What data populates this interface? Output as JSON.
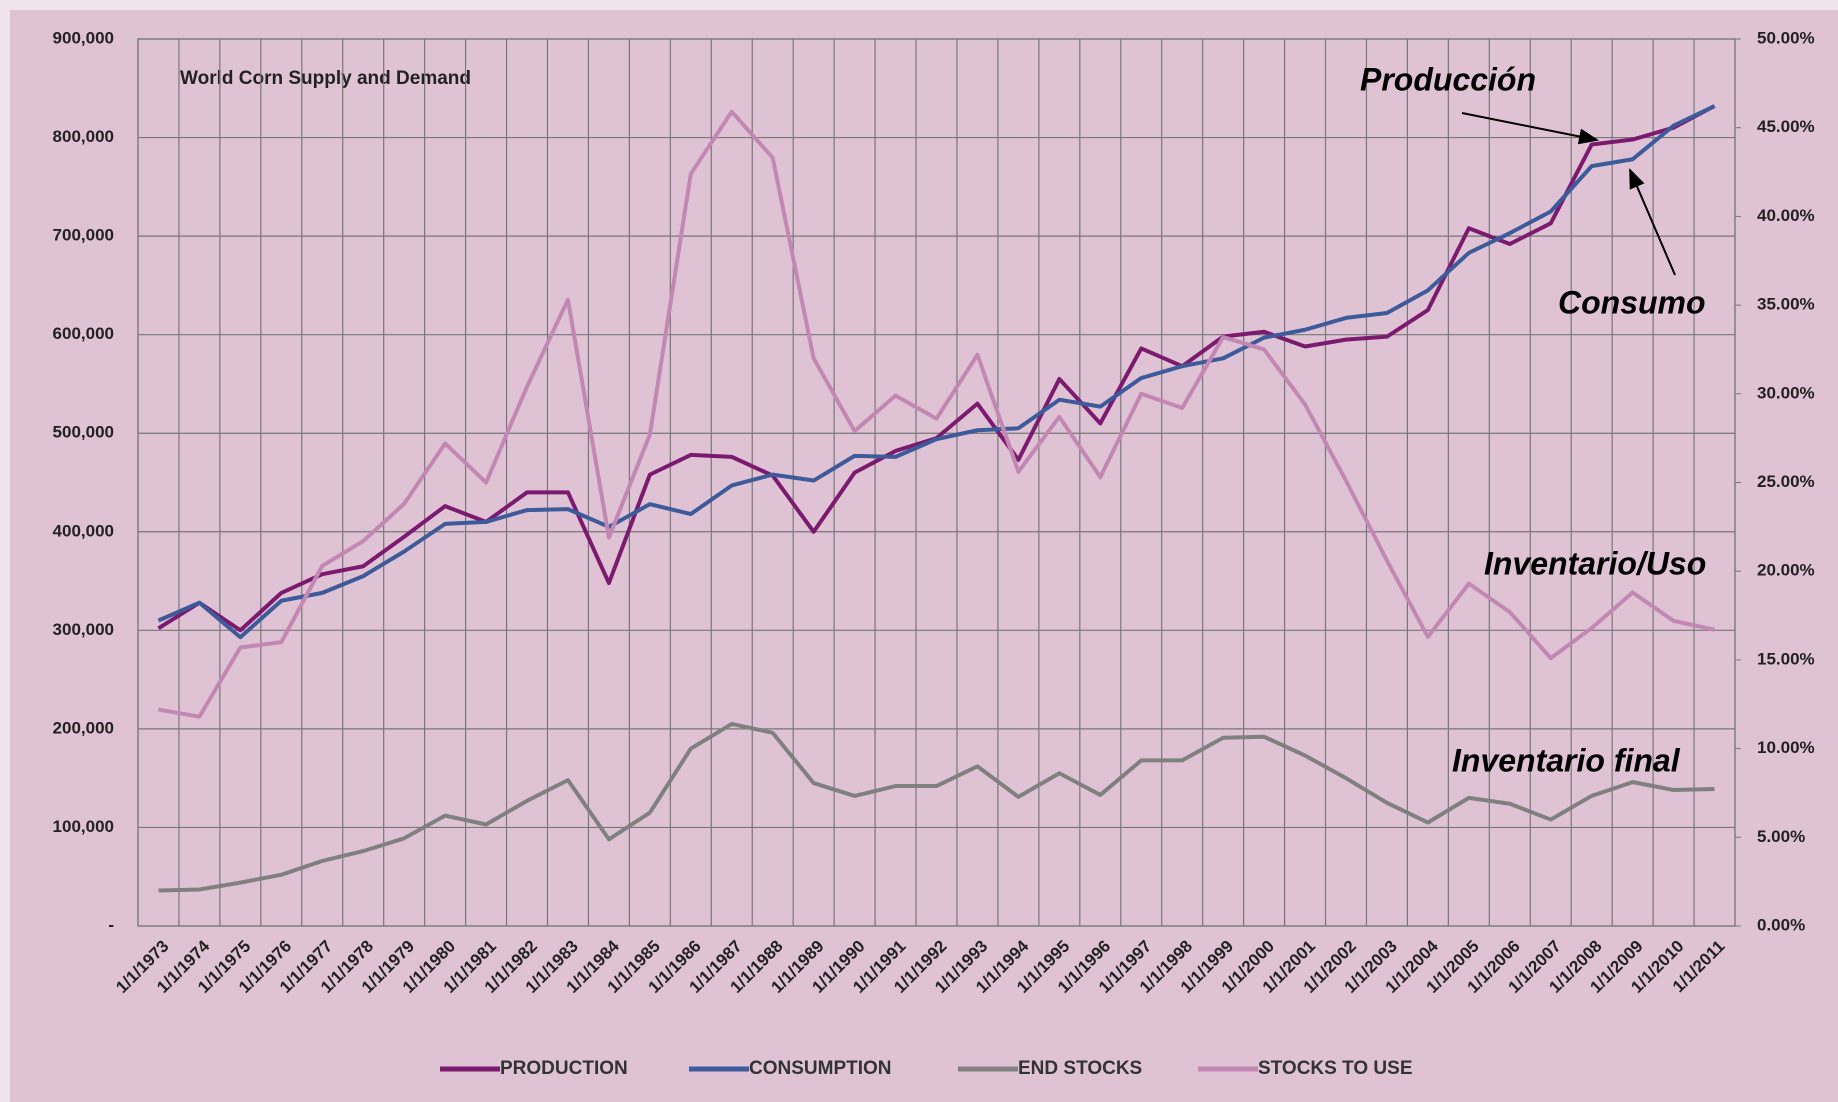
{
  "chart_data": {
    "type": "line",
    "title": "World Corn Supply  and Demand",
    "categories": [
      "1/1/1973",
      "1/1/1974",
      "1/1/1975",
      "1/1/1976",
      "1/1/1977",
      "1/1/1978",
      "1/1/1979",
      "1/1/1980",
      "1/1/1981",
      "1/1/1982",
      "1/1/1983",
      "1/1/1984",
      "1/1/1985",
      "1/1/1986",
      "1/1/1987",
      "1/1/1988",
      "1/1/1989",
      "1/1/1990",
      "1/1/1991",
      "1/1/1992",
      "1/1/1993",
      "1/1/1994",
      "1/1/1995",
      "1/1/1996",
      "1/1/1997",
      "1/1/1998",
      "1/1/1999",
      "1/1/2000",
      "1/1/2001",
      "1/1/2002",
      "1/1/2003",
      "1/1/2004",
      "1/1/2005",
      "1/1/2006",
      "1/1/2007",
      "1/1/2008",
      "1/1/2009",
      "1/1/2010",
      "1/1/2011"
    ],
    "series": [
      {
        "name": "PRODUCTION",
        "color": "#7b1a6e",
        "values": [
          302000,
          328000,
          300000,
          338000,
          357000,
          365000,
          395000,
          426000,
          410000,
          440000,
          440000,
          348000,
          458000,
          478000,
          476000,
          457000,
          400000,
          460000,
          482000,
          495000,
          530000,
          473000,
          555000,
          510000,
          586000,
          568000,
          598000,
          603000,
          588000,
          595000,
          598000,
          625000,
          708000,
          692000,
          713000,
          793000,
          798000,
          810000,
          832000
        ]
      },
      {
        "name": "CONSUMPTION",
        "color": "#3d5a9a",
        "values": [
          310000,
          328000,
          293000,
          330000,
          338000,
          355000,
          380000,
          408000,
          410000,
          422000,
          423000,
          405000,
          428000,
          418000,
          447000,
          458000,
          452000,
          477000,
          476000,
          494000,
          503000,
          505000,
          534000,
          527000,
          556000,
          568000,
          576000,
          597000,
          605000,
          617000,
          622000,
          645000,
          683000,
          703000,
          725000,
          771000,
          778000,
          812000,
          832000
        ]
      },
      {
        "name": "END STOCKS",
        "color": "#808080",
        "values": [
          36000,
          37000,
          44000,
          52000,
          66000,
          76000,
          89000,
          112000,
          103000,
          127000,
          148000,
          88000,
          115000,
          180000,
          205000,
          196000,
          145000,
          132000,
          142000,
          142000,
          162000,
          131000,
          155000,
          133000,
          168000,
          168000,
          191000,
          192000,
          173000,
          150000,
          125000,
          105000,
          130000,
          124000,
          108000,
          132000,
          146000,
          138000,
          139000
        ]
      },
      {
        "name": "STOCKS TO USE",
        "color": "#c387b3",
        "axis": "y2",
        "values": [
          12.2,
          11.8,
          15.7,
          16.0,
          20.3,
          21.7,
          23.8,
          27.2,
          25.0,
          30.4,
          35.3,
          21.9,
          27.7,
          42.4,
          45.9,
          43.3,
          32.0,
          27.9,
          29.9,
          28.6,
          32.2,
          25.6,
          28.7,
          25.3,
          30.0,
          29.2,
          33.2,
          32.5,
          29.4,
          25.1,
          20.6,
          16.3,
          19.3,
          17.7,
          15.1,
          16.8,
          18.8,
          17.2,
          16.7
        ]
      }
    ],
    "ylim": [
      0,
      900000
    ],
    "yticks": [
      {
        "value": 0,
        "label": "-"
      },
      {
        "value": 100000,
        "label": "100,000"
      },
      {
        "value": 200000,
        "label": "200,000"
      },
      {
        "value": 300000,
        "label": "300,000"
      },
      {
        "value": 400000,
        "label": "400,000"
      },
      {
        "value": 500000,
        "label": "500,000"
      },
      {
        "value": 600000,
        "label": "600,000"
      },
      {
        "value": 700000,
        "label": "700,000"
      },
      {
        "value": 800000,
        "label": "800,000"
      },
      {
        "value": 900000,
        "label": "900,000"
      }
    ],
    "y2lim": [
      0,
      50
    ],
    "y2ticks": [
      {
        "value": 0,
        "label": "0.00%"
      },
      {
        "value": 5,
        "label": "5.00%"
      },
      {
        "value": 10,
        "label": "10.00%"
      },
      {
        "value": 15,
        "label": "15.00%"
      },
      {
        "value": 20,
        "label": "20.00%"
      },
      {
        "value": 25,
        "label": "25.00%"
      },
      {
        "value": 30,
        "label": "30.00%"
      },
      {
        "value": 35,
        "label": "35.00%"
      },
      {
        "value": 40,
        "label": "40.00%"
      },
      {
        "value": 45,
        "label": "45.00%"
      },
      {
        "value": 50,
        "label": "50.00%"
      }
    ],
    "grid": true,
    "legend": "bottom",
    "annotations": [
      "Producción",
      "Consumo",
      "Inventario/Uso",
      "Inventario final"
    ]
  }
}
